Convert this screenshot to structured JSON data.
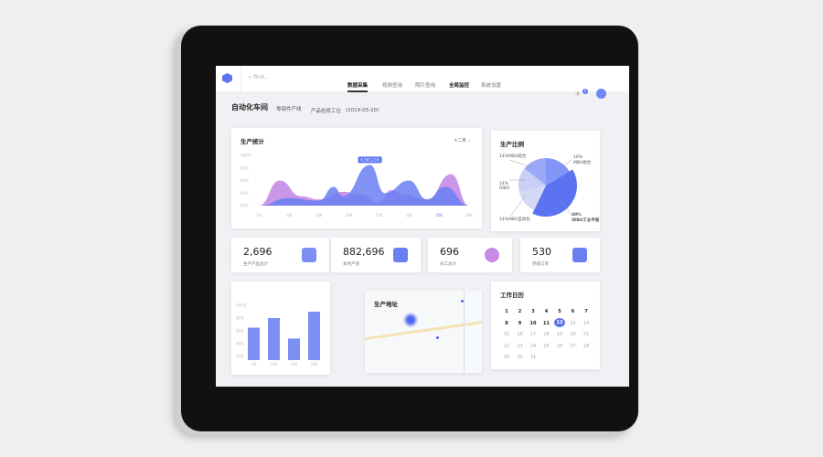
{
  "header": {
    "search_placeholder": "find...",
    "nav": [
      {
        "label": "数据采集",
        "active": true
      },
      {
        "label": "视频查询"
      },
      {
        "label": "照片查询"
      },
      {
        "label": "全局监控",
        "bold": true
      },
      {
        "label": "系统设置"
      }
    ],
    "notification_count": "0"
  },
  "page": {
    "title": "自动化车间",
    "crumbs": [
      "零部件产线",
      "产品检修工位",
      "(2019-05-20)"
    ]
  },
  "production_chart": {
    "title": "生产统计",
    "period": "十二月",
    "tooltip": "6,563,216"
  },
  "ratio": {
    "title": "生产比例",
    "labels": [
      {
        "pct": "16%",
        "name": "MBU组合"
      },
      {
        "pct": "14%",
        "name": "MBU组合"
      },
      {
        "pct": "14%",
        "name": "IDBU"
      },
      {
        "pct": "14%",
        "name": "MBU自动化"
      },
      {
        "pct": "40%",
        "name": "IDBU工业平板"
      }
    ]
  },
  "stats": [
    {
      "value": "2,696",
      "label": "生产产品总计",
      "icon": "folder-icon"
    },
    {
      "value": "882,696",
      "label": "本月产值",
      "icon": "chart-window-icon"
    },
    {
      "value": "696",
      "label": "员工总计",
      "icon": "user-icon"
    },
    {
      "value": "530",
      "label": "完成订单",
      "icon": "calendar-list-icon"
    }
  ],
  "map": {
    "title": "生产地址"
  },
  "calendar": {
    "title": "工作日历",
    "days": [
      "1",
      "2",
      "3",
      "4",
      "5",
      "6",
      "7",
      "8",
      "9",
      "10",
      "11",
      "12",
      "13",
      "14",
      "15",
      "16",
      "17",
      "18",
      "19",
      "20",
      "21",
      "22",
      "23",
      "24",
      "25",
      "26",
      "27",
      "28",
      "29",
      "30",
      "31"
    ],
    "selected": "12"
  },
  "colors": {
    "accent": "#5b73f0",
    "purple": "#c58be6",
    "bar": "#7b8ff5"
  },
  "chart_data": [
    {
      "type": "area",
      "title": "生产统计",
      "x_ticks": [
        "5K",
        "10K",
        "15K",
        "20K",
        "25K",
        "30K",
        "35K",
        "40K"
      ],
      "y_ticks": [
        "20%",
        "40%",
        "60%",
        "80%",
        "100%"
      ],
      "ylim": [
        20,
        100
      ],
      "xlim": [
        5,
        40
      ],
      "series": [
        {
          "color": "#c58be6",
          "x": [
            5,
            8.5,
            12,
            15,
            19,
            22,
            25,
            27,
            29,
            33,
            37,
            40
          ],
          "y": [
            20,
            60,
            35,
            30,
            42,
            38,
            25,
            45,
            38,
            30,
            70,
            20
          ]
        },
        {
          "color": "#6a7ff2",
          "x": [
            5,
            10,
            15,
            17.5,
            19,
            23.5,
            26,
            30,
            33,
            36,
            40
          ],
          "y": [
            20,
            32,
            28,
            50,
            35,
            85,
            40,
            60,
            30,
            50,
            20
          ]
        }
      ]
    },
    {
      "type": "pie",
      "values": [
        16,
        14,
        14,
        14,
        40
      ]
    },
    {
      "type": "bar",
      "categories": [
        "5K",
        "10K",
        "15K",
        "20K"
      ],
      "values": [
        65,
        80,
        48,
        90
      ],
      "y_ticks": [
        "20%",
        "40%",
        "60%",
        "80%",
        "100%"
      ],
      "ylim": [
        20,
        100
      ]
    }
  ]
}
